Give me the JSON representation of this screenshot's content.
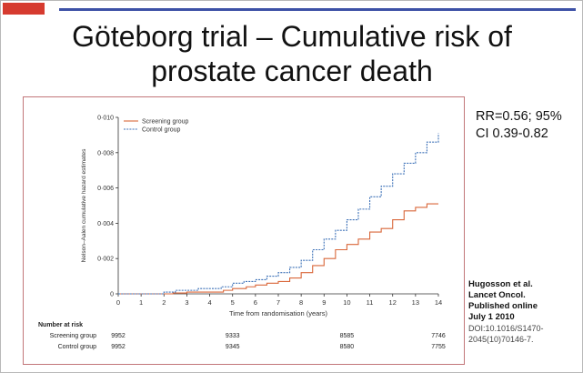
{
  "slide": {
    "title_line1": "Göteborg trial – Cumulative risk of",
    "title_line2": "prostate cancer death",
    "stat_line1": "RR=0.56; 95%",
    "stat_line2": "CI 0.39-0.82",
    "citation": {
      "line1": "Hugosson et al.",
      "line2": "Lancet Oncol.",
      "line3": "Published online",
      "line4": "July 1 2010",
      "line5": "DOI:10.1016/S1470-",
      "line6": "2045(10)70146-7."
    }
  },
  "colors": {
    "accent_red": "#d63b2f",
    "accent_blue": "#3d51a6",
    "screening": "#d9673a",
    "control": "#3e72b8",
    "frame": "#c2777a"
  },
  "chart_data": {
    "type": "line",
    "xlabel": "Time from randomisation (years)",
    "ylabel": "Nelson–Aalen cumulative hazard estimates",
    "xlim": [
      0,
      14
    ],
    "ylim": [
      0,
      0.01
    ],
    "xticks": [
      0,
      1,
      2,
      3,
      4,
      5,
      6,
      7,
      8,
      9,
      10,
      11,
      12,
      13,
      14
    ],
    "yticks": [
      "0",
      "0·002",
      "0·004",
      "0·006",
      "0·008",
      "0·010"
    ],
    "ytick_values": [
      0,
      0.002,
      0.004,
      0.006,
      0.008,
      0.01
    ],
    "grid": false,
    "legend_position": "top-left",
    "series": [
      {
        "name": "Screening group",
        "color": "#d9673a",
        "dash": "solid",
        "points": [
          [
            0,
            0
          ],
          [
            2,
            0
          ],
          [
            2.4,
            5e-05
          ],
          [
            3,
            0.0001
          ],
          [
            4,
            0.0001
          ],
          [
            4.6,
            0.0002
          ],
          [
            5,
            0.0003
          ],
          [
            5.6,
            0.0004
          ],
          [
            6,
            0.0005
          ],
          [
            6.5,
            0.0006
          ],
          [
            7,
            0.0007
          ],
          [
            7.5,
            0.0009
          ],
          [
            8,
            0.0012
          ],
          [
            8.5,
            0.0016
          ],
          [
            9,
            0.002
          ],
          [
            9.5,
            0.0025
          ],
          [
            10,
            0.0028
          ],
          [
            10.5,
            0.0031
          ],
          [
            11,
            0.0035
          ],
          [
            11.5,
            0.0037
          ],
          [
            12,
            0.0042
          ],
          [
            12.5,
            0.0047
          ],
          [
            13,
            0.0049
          ],
          [
            13.5,
            0.0051
          ],
          [
            14,
            0.0051
          ]
        ]
      },
      {
        "name": "Control group",
        "color": "#3e72b8",
        "dash": "dashed",
        "points": [
          [
            0,
            0
          ],
          [
            1.5,
            0
          ],
          [
            2,
            0.0001
          ],
          [
            2.5,
            0.0002
          ],
          [
            3,
            0.0002
          ],
          [
            3.5,
            0.0003
          ],
          [
            4,
            0.0003
          ],
          [
            4.5,
            0.0004
          ],
          [
            5,
            0.0006
          ],
          [
            5.5,
            0.0007
          ],
          [
            6,
            0.0008
          ],
          [
            6.5,
            0.001
          ],
          [
            7,
            0.0012
          ],
          [
            7.5,
            0.0015
          ],
          [
            8,
            0.0019
          ],
          [
            8.5,
            0.0025
          ],
          [
            9,
            0.0031
          ],
          [
            9.5,
            0.0036
          ],
          [
            10,
            0.0042
          ],
          [
            10.5,
            0.0048
          ],
          [
            11,
            0.0055
          ],
          [
            11.5,
            0.0061
          ],
          [
            12,
            0.0068
          ],
          [
            12.5,
            0.0074
          ],
          [
            13,
            0.008
          ],
          [
            13.5,
            0.0086
          ],
          [
            14,
            0.0091
          ]
        ]
      }
    ],
    "risk_table": {
      "header": "Number at risk",
      "time_points": [
        0,
        5,
        10,
        14
      ],
      "rows": [
        {
          "label": "Screening group",
          "values": [
            "9952",
            "9333",
            "8585",
            "7746"
          ]
        },
        {
          "label": "Control group",
          "values": [
            "9952",
            "9345",
            "8580",
            "7755"
          ]
        }
      ]
    }
  }
}
